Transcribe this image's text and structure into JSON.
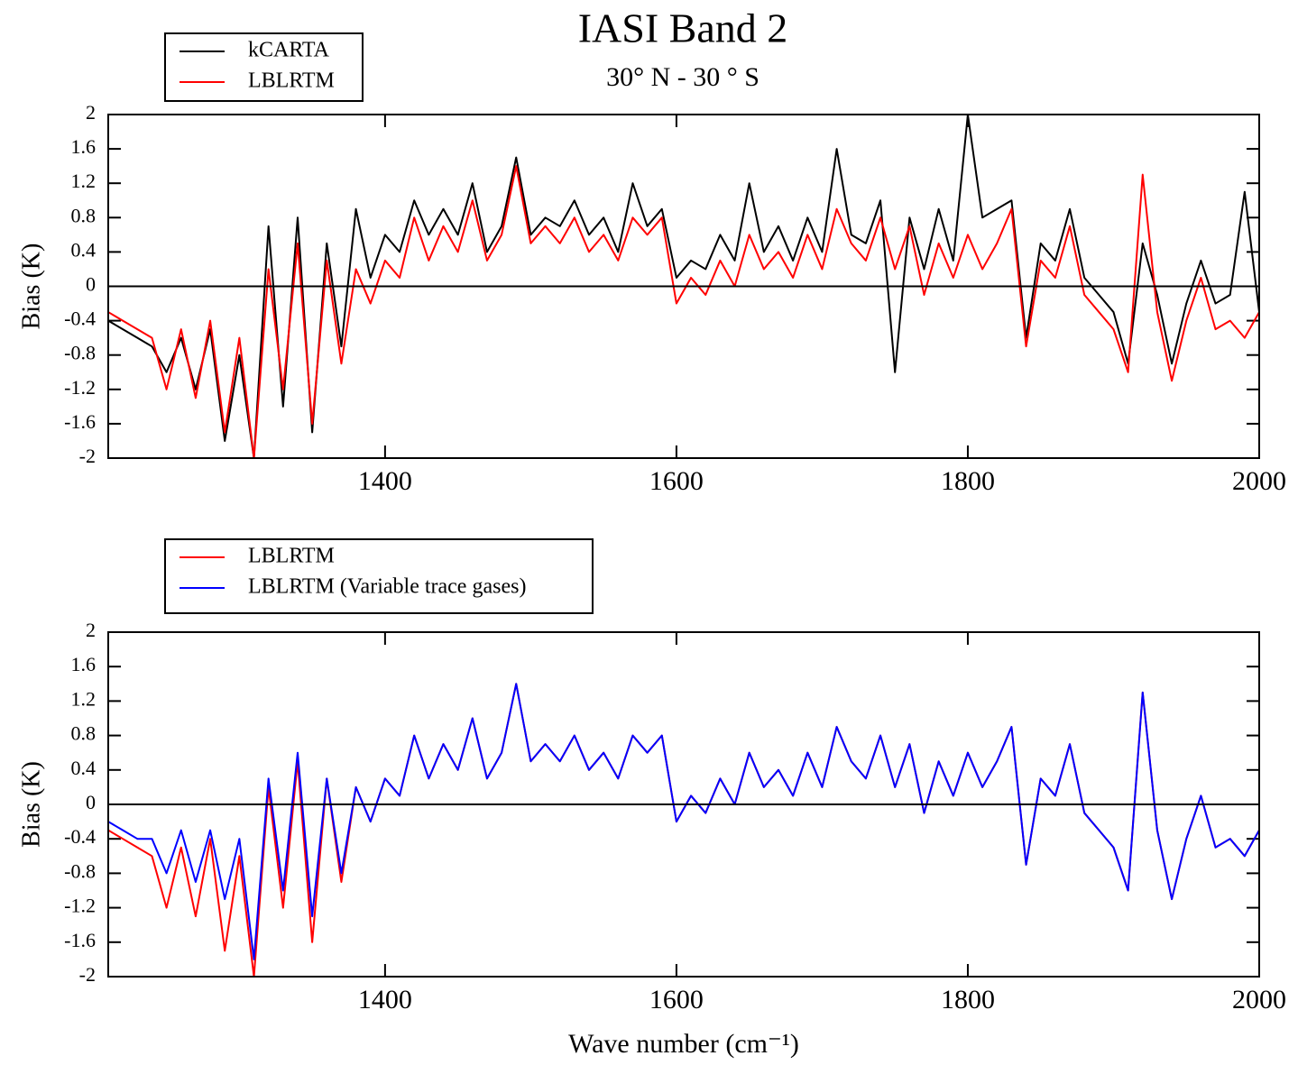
{
  "chart_data": [
    {
      "type": "line",
      "title": "IASI Band 2",
      "subtitle": "30° N - 30 ° S",
      "ylabel": "Bias (K)",
      "x": [
        1210,
        1220,
        1230,
        1240,
        1250,
        1260,
        1270,
        1280,
        1290,
        1300,
        1310,
        1320,
        1330,
        1340,
        1350,
        1360,
        1370,
        1380,
        1390,
        1400,
        1410,
        1420,
        1430,
        1440,
        1450,
        1460,
        1470,
        1480,
        1490,
        1500,
        1510,
        1520,
        1530,
        1540,
        1550,
        1560,
        1570,
        1580,
        1590,
        1600,
        1610,
        1620,
        1630,
        1640,
        1650,
        1660,
        1670,
        1680,
        1690,
        1700,
        1710,
        1720,
        1730,
        1740,
        1750,
        1760,
        1770,
        1780,
        1790,
        1800,
        1810,
        1820,
        1830,
        1840,
        1850,
        1860,
        1870,
        1880,
        1890,
        1900,
        1910,
        1920,
        1930,
        1940,
        1950,
        1960,
        1970,
        1980,
        1990,
        2000
      ],
      "series": [
        {
          "name": "kCARTA",
          "color": "#000000",
          "values": [
            -0.4,
            -0.5,
            -0.6,
            -0.7,
            -1.0,
            -0.6,
            -1.2,
            -0.5,
            -1.8,
            -0.8,
            -2.0,
            0.7,
            -1.4,
            0.8,
            -1.7,
            0.5,
            -0.7,
            0.9,
            0.1,
            0.6,
            0.4,
            1.0,
            0.6,
            0.9,
            0.6,
            1.2,
            0.4,
            0.7,
            1.5,
            0.6,
            0.8,
            0.7,
            1.0,
            0.6,
            0.8,
            0.4,
            1.2,
            0.7,
            0.9,
            0.1,
            0.3,
            0.2,
            0.6,
            0.3,
            1.2,
            0.4,
            0.7,
            0.3,
            0.8,
            0.4,
            1.6,
            0.6,
            0.5,
            1.0,
            -1.0,
            0.8,
            0.2,
            0.9,
            0.3,
            2.0,
            0.8,
            0.9,
            1.0,
            -0.6,
            0.5,
            0.3,
            0.9,
            0.1,
            -0.1,
            -0.3,
            -0.9,
            0.5,
            -0.1,
            -0.9,
            -0.2,
            0.3,
            -0.2,
            -0.1,
            1.1,
            -0.3
          ]
        },
        {
          "name": "LBLRTM",
          "color": "#ff0000",
          "values": [
            -0.3,
            -0.4,
            -0.5,
            -0.6,
            -1.2,
            -0.5,
            -1.3,
            -0.4,
            -1.7,
            -0.6,
            -2.0,
            0.2,
            -1.2,
            0.5,
            -1.6,
            0.3,
            -0.9,
            0.2,
            -0.2,
            0.3,
            0.1,
            0.8,
            0.3,
            0.7,
            0.4,
            1.0,
            0.3,
            0.6,
            1.4,
            0.5,
            0.7,
            0.5,
            0.8,
            0.4,
            0.6,
            0.3,
            0.8,
            0.6,
            0.8,
            -0.2,
            0.1,
            -0.1,
            0.3,
            0.0,
            0.6,
            0.2,
            0.4,
            0.1,
            0.6,
            0.2,
            0.9,
            0.5,
            0.3,
            0.8,
            0.2,
            0.7,
            -0.1,
            0.5,
            0.1,
            0.6,
            0.2,
            0.5,
            0.9,
            -0.7,
            0.3,
            0.1,
            0.7,
            -0.1,
            -0.3,
            -0.5,
            -1.0,
            1.3,
            -0.3,
            -1.1,
            -0.4,
            0.1,
            -0.5,
            -0.4,
            -0.6,
            -0.3
          ]
        }
      ],
      "xlim": [
        1210,
        2000
      ],
      "ylim": [
        -2,
        2
      ],
      "xticks": [
        1400,
        1600,
        1800,
        2000
      ],
      "yticks": [
        -2,
        -1.6,
        -1.2,
        -0.8,
        -0.4,
        0,
        0.4,
        0.8,
        1.2,
        1.6,
        2
      ]
    },
    {
      "type": "line",
      "ylabel": "Bias (K)",
      "xlabel": "Wave number (cm⁻¹)",
      "x": [
        1210,
        1220,
        1230,
        1240,
        1250,
        1260,
        1270,
        1280,
        1290,
        1300,
        1310,
        1320,
        1330,
        1340,
        1350,
        1360,
        1370,
        1380,
        1390,
        1400,
        1410,
        1420,
        1430,
        1440,
        1450,
        1460,
        1470,
        1480,
        1490,
        1500,
        1510,
        1520,
        1530,
        1540,
        1550,
        1560,
        1570,
        1580,
        1590,
        1600,
        1610,
        1620,
        1630,
        1640,
        1650,
        1660,
        1670,
        1680,
        1690,
        1700,
        1710,
        1720,
        1730,
        1740,
        1750,
        1760,
        1770,
        1780,
        1790,
        1800,
        1810,
        1820,
        1830,
        1840,
        1850,
        1860,
        1870,
        1880,
        1890,
        1900,
        1910,
        1920,
        1930,
        1940,
        1950,
        1960,
        1970,
        1980,
        1990,
        2000
      ],
      "series": [
        {
          "name": "LBLRTM",
          "color": "#ff0000",
          "values": [
            -0.3,
            -0.4,
            -0.5,
            -0.6,
            -1.2,
            -0.5,
            -1.3,
            -0.4,
            -1.7,
            -0.6,
            -2.0,
            0.2,
            -1.2,
            0.5,
            -1.6,
            0.3,
            -0.9,
            0.2,
            -0.2,
            0.3,
            0.1,
            0.8,
            0.3,
            0.7,
            0.4,
            1.0,
            0.3,
            0.6,
            1.4,
            0.5,
            0.7,
            0.5,
            0.8,
            0.4,
            0.6,
            0.3,
            0.8,
            0.6,
            0.8,
            -0.2,
            0.1,
            -0.1,
            0.3,
            0.0,
            0.6,
            0.2,
            0.4,
            0.1,
            0.6,
            0.2,
            0.9,
            0.5,
            0.3,
            0.8,
            0.2,
            0.7,
            -0.1,
            0.5,
            0.1,
            0.6,
            0.2,
            0.5,
            0.9,
            -0.7,
            0.3,
            0.1,
            0.7,
            -0.1,
            -0.3,
            -0.5,
            -1.0,
            1.3,
            -0.3,
            -1.1,
            -0.4,
            0.1,
            -0.5,
            -0.4,
            -0.6,
            -0.3
          ]
        },
        {
          "name": "LBLRTM (Variable trace gases)",
          "color": "#0000ff",
          "values": [
            -0.2,
            -0.3,
            -0.4,
            -0.4,
            -0.8,
            -0.3,
            -0.9,
            -0.3,
            -1.1,
            -0.4,
            -1.8,
            0.3,
            -1.0,
            0.6,
            -1.3,
            0.3,
            -0.8,
            0.2,
            -0.2,
            0.3,
            0.1,
            0.8,
            0.3,
            0.7,
            0.4,
            1.0,
            0.3,
            0.6,
            1.4,
            0.5,
            0.7,
            0.5,
            0.8,
            0.4,
            0.6,
            0.3,
            0.8,
            0.6,
            0.8,
            -0.2,
            0.1,
            -0.1,
            0.3,
            0.0,
            0.6,
            0.2,
            0.4,
            0.1,
            0.6,
            0.2,
            0.9,
            0.5,
            0.3,
            0.8,
            0.2,
            0.7,
            -0.1,
            0.5,
            0.1,
            0.6,
            0.2,
            0.5,
            0.9,
            -0.7,
            0.3,
            0.1,
            0.7,
            -0.1,
            -0.3,
            -0.5,
            -1.0,
            1.3,
            -0.3,
            -1.1,
            -0.4,
            0.1,
            -0.5,
            -0.4,
            -0.6,
            -0.3
          ]
        }
      ],
      "xlim": [
        1210,
        2000
      ],
      "ylim": [
        -2,
        2
      ],
      "xticks": [
        1400,
        1600,
        1800,
        2000
      ],
      "yticks": [
        -2,
        -1.6,
        -1.2,
        -0.8,
        -0.4,
        0,
        0.4,
        0.8,
        1.2,
        1.6,
        2
      ]
    }
  ]
}
